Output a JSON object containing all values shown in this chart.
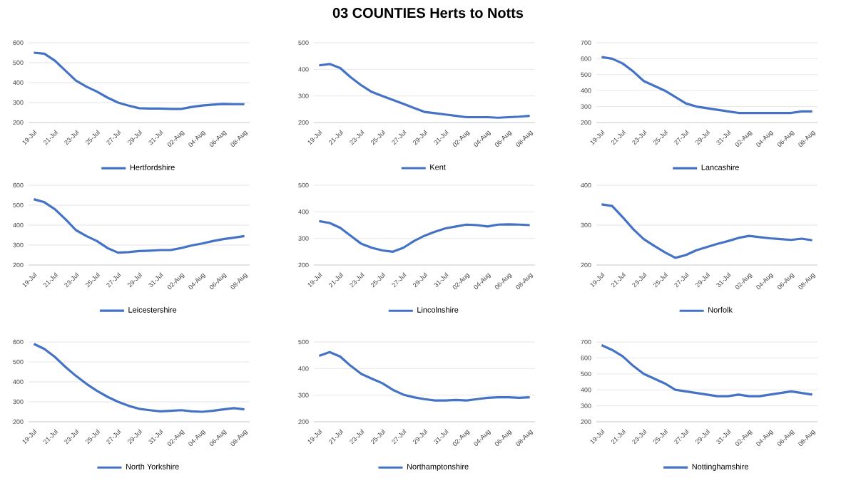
{
  "chart_data": [
    {
      "type": "line",
      "categories": [
        "19-Jul",
        null,
        "21-Jul",
        null,
        "23-Jul",
        null,
        "25-Jul",
        null,
        "27-Jul",
        null,
        "29-Jul",
        null,
        "31-Jul",
        null,
        "02-Aug",
        null,
        "04-Aug",
        null,
        "06-Aug",
        null,
        "08-Aug"
      ],
      "ylim": [
        200,
        600
      ],
      "yticks": [
        200,
        300,
        400,
        500,
        600
      ],
      "grid": "y",
      "legend": "bottom",
      "series": [
        {
          "name": "Hertfordshire",
          "color": "#4472c4",
          "values": [
            550,
            545,
            510,
            460,
            410,
            380,
            355,
            325,
            300,
            285,
            272,
            270,
            270,
            268,
            268,
            278,
            285,
            290,
            293,
            292,
            292
          ]
        }
      ]
    },
    {
      "type": "line",
      "title": "03 COUNTIES Herts to Notts",
      "categories": [
        "19-Jul",
        null,
        "21-Jul",
        null,
        "23-Jul",
        null,
        "25-Jul",
        null,
        "27-Jul",
        null,
        "29-Jul",
        null,
        "31-Jul",
        null,
        "02-Aug",
        null,
        "04-Aug",
        null,
        "06-Aug",
        null,
        "08-Aug"
      ],
      "ylim": [
        200,
        500
      ],
      "yticks": [
        200,
        300,
        400,
        500
      ],
      "grid": "y",
      "legend": "bottom",
      "series": [
        {
          "name": "Kent",
          "color": "#4472c4",
          "values": [
            415,
            420,
            405,
            370,
            340,
            315,
            300,
            285,
            270,
            255,
            240,
            235,
            230,
            225,
            220,
            220,
            220,
            218,
            220,
            222,
            225
          ]
        }
      ]
    },
    {
      "type": "line",
      "categories": [
        "19-Jul",
        null,
        "21-Jul",
        null,
        "23-Jul",
        null,
        "25-Jul",
        null,
        "27-Jul",
        null,
        "29-Jul",
        null,
        "31-Jul",
        null,
        "02-Aug",
        null,
        "04-Aug",
        null,
        "06-Aug",
        null,
        "08-Aug"
      ],
      "ylim": [
        200,
        700
      ],
      "yticks": [
        200,
        300,
        400,
        500,
        600,
        700
      ],
      "grid": "y",
      "legend": "bottom",
      "series": [
        {
          "name": "Lancashire",
          "color": "#4472c4",
          "values": [
            610,
            600,
            570,
            520,
            460,
            430,
            400,
            360,
            320,
            300,
            290,
            280,
            270,
            260,
            260,
            260,
            260,
            260,
            260,
            270,
            270
          ]
        }
      ]
    },
    {
      "type": "line",
      "categories": [
        "19-Jul",
        null,
        "21-Jul",
        null,
        "23-Jul",
        null,
        "25-Jul",
        null,
        "27-Jul",
        null,
        "29-Jul",
        null,
        "31-Jul",
        null,
        "02-Aug",
        null,
        "04-Aug",
        null,
        "06-Aug",
        null,
        "08-Aug"
      ],
      "ylim": [
        200,
        600
      ],
      "yticks": [
        200,
        300,
        400,
        500,
        600
      ],
      "grid": "y",
      "legend": "bottom",
      "series": [
        {
          "name": "Leicestershire",
          "color": "#4472c4",
          "values": [
            530,
            515,
            480,
            430,
            375,
            345,
            320,
            285,
            262,
            265,
            270,
            272,
            275,
            275,
            285,
            298,
            308,
            320,
            330,
            337,
            345
          ]
        }
      ]
    },
    {
      "type": "line",
      "categories": [
        "19-Jul",
        null,
        "21-Jul",
        null,
        "23-Jul",
        null,
        "25-Jul",
        null,
        "27-Jul",
        null,
        "29-Jul",
        null,
        "31-Jul",
        null,
        "02-Aug",
        null,
        "04-Aug",
        null,
        "06-Aug",
        null,
        "08-Aug"
      ],
      "ylim": [
        200,
        500
      ],
      "yticks": [
        200,
        300,
        400,
        500
      ],
      "grid": "y",
      "legend": "bottom",
      "series": [
        {
          "name": "Lincolnshire",
          "color": "#4472c4",
          "values": [
            365,
            358,
            340,
            310,
            280,
            265,
            255,
            250,
            265,
            290,
            310,
            325,
            338,
            345,
            352,
            350,
            345,
            352,
            353,
            352,
            350
          ]
        }
      ]
    },
    {
      "type": "line",
      "categories": [
        "19-Jul",
        null,
        "21-Jul",
        null,
        "23-Jul",
        null,
        "25-Jul",
        null,
        "27-Jul",
        null,
        "29-Jul",
        null,
        "31-Jul",
        null,
        "02-Aug",
        null,
        "04-Aug",
        null,
        "06-Aug",
        null,
        "08-Aug"
      ],
      "ylim": [
        200,
        400
      ],
      "yticks": [
        200,
        300,
        400
      ],
      "grid": "y",
      "legend": "bottom",
      "series": [
        {
          "name": "Norfolk",
          "color": "#4472c4",
          "values": [
            352,
            348,
            320,
            290,
            265,
            248,
            232,
            218,
            225,
            237,
            245,
            253,
            260,
            268,
            273,
            270,
            267,
            265,
            263,
            266,
            262
          ]
        }
      ]
    },
    {
      "type": "line",
      "categories": [
        "19-Jul",
        null,
        "21-Jul",
        null,
        "23-Jul",
        null,
        "25-Jul",
        null,
        "27-Jul",
        null,
        "29-Jul",
        null,
        "31-Jul",
        null,
        "02-Aug",
        null,
        "04-Aug",
        null,
        "06-Aug",
        null,
        "08-Aug"
      ],
      "ylim": [
        200,
        600
      ],
      "yticks": [
        200,
        300,
        400,
        500,
        600
      ],
      "grid": "y",
      "legend": "bottom",
      "series": [
        {
          "name": "North Yorkshire",
          "color": "#4472c4",
          "values": [
            590,
            565,
            525,
            475,
            430,
            390,
            355,
            325,
            300,
            280,
            265,
            258,
            252,
            255,
            258,
            252,
            250,
            255,
            262,
            268,
            262
          ]
        }
      ]
    },
    {
      "type": "line",
      "categories": [
        "19-Jul",
        null,
        "21-Jul",
        null,
        "23-Jul",
        null,
        "25-Jul",
        null,
        "27-Jul",
        null,
        "29-Jul",
        null,
        "31-Jul",
        null,
        "02-Aug",
        null,
        "04-Aug",
        null,
        "06-Aug",
        null,
        "08-Aug"
      ],
      "ylim": [
        200,
        500
      ],
      "yticks": [
        200,
        300,
        400,
        500
      ],
      "grid": "y",
      "legend": "bottom",
      "series": [
        {
          "name": "Northamptonshire",
          "color": "#4472c4",
          "values": [
            448,
            462,
            445,
            410,
            380,
            362,
            345,
            320,
            302,
            292,
            285,
            280,
            280,
            282,
            280,
            285,
            290,
            292,
            292,
            290,
            292
          ]
        }
      ]
    },
    {
      "type": "line",
      "categories": [
        "19-Jul",
        null,
        "21-Jul",
        null,
        "23-Jul",
        null,
        "25-Jul",
        null,
        "27-Jul",
        null,
        "29-Jul",
        null,
        "31-Jul",
        null,
        "02-Aug",
        null,
        "04-Aug",
        null,
        "06-Aug",
        null,
        "08-Aug"
      ],
      "ylim": [
        200,
        700
      ],
      "yticks": [
        200,
        300,
        400,
        500,
        600,
        700
      ],
      "grid": "y",
      "legend": "bottom",
      "series": [
        {
          "name": "Nottinghamshire",
          "color": "#4472c4",
          "values": [
            680,
            650,
            610,
            550,
            500,
            470,
            440,
            400,
            390,
            380,
            370,
            360,
            360,
            370,
            360,
            360,
            370,
            380,
            390,
            380,
            370
          ]
        }
      ]
    }
  ]
}
